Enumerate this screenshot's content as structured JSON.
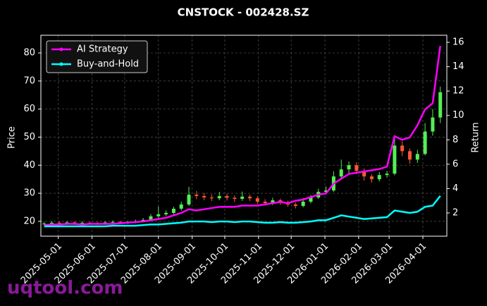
{
  "chart_data": {
    "type": "candlestick",
    "title": "CNSTOCK - 002428.SZ",
    "ylabel": "Price",
    "y2label": "Return",
    "grid": true,
    "legend": "upper left",
    "up_color": "#55ee55",
    "down_color": "#ff5533",
    "x": [
      "2025-04-18",
      "2025-04-25",
      "2025-05-02",
      "2025-05-09",
      "2025-05-16",
      "2025-05-23",
      "2025-05-30",
      "2025-06-06",
      "2025-06-13",
      "2025-06-20",
      "2025-06-27",
      "2025-07-04",
      "2025-07-11",
      "2025-07-18",
      "2025-07-25",
      "2025-08-01",
      "2025-08-08",
      "2025-08-15",
      "2025-08-22",
      "2025-08-29",
      "2025-09-05",
      "2025-09-12",
      "2025-09-19",
      "2025-09-26",
      "2025-10-03",
      "2025-10-10",
      "2025-10-17",
      "2025-10-24",
      "2025-10-31",
      "2025-11-07",
      "2025-11-14",
      "2025-11-21",
      "2025-11-28",
      "2025-12-05",
      "2025-12-12",
      "2025-12-19",
      "2025-12-26",
      "2026-01-02",
      "2026-01-09",
      "2026-01-16",
      "2026-01-23",
      "2026-01-30",
      "2026-02-06",
      "2026-02-13",
      "2026-02-20",
      "2026-02-27",
      "2026-03-06",
      "2026-03-13",
      "2026-03-20",
      "2026-03-27",
      "2026-04-03",
      "2026-04-10",
      "2026-04-17"
    ],
    "open": [
      19.0,
      19.2,
      19.5,
      19.4,
      19.6,
      19.3,
      19.5,
      19.4,
      19.2,
      19.6,
      19.8,
      19.5,
      19.7,
      20.0,
      20.5,
      21.8,
      22.5,
      23.0,
      24.5,
      26.0,
      29.5,
      29.0,
      28.5,
      28.2,
      29.0,
      28.4,
      28.0,
      28.8,
      28.2,
      27.0,
      26.5,
      27.5,
      26.8,
      26.0,
      25.5,
      27.0,
      28.5,
      30.5,
      31.0,
      36.0,
      38.5,
      40.0,
      38.0,
      36.0,
      35.0,
      36.5,
      37.0,
      47.0,
      45.0,
      42.0,
      44.0,
      52.0,
      57.0
    ],
    "high": [
      19.8,
      20.1,
      20.0,
      20.1,
      20.0,
      20.0,
      19.9,
      19.8,
      20.1,
      20.3,
      20.2,
      20.2,
      20.6,
      21.2,
      22.6,
      25.3,
      23.9,
      25.2,
      27.0,
      32.3,
      30.8,
      30.1,
      29.6,
      30.5,
      29.8,
      29.2,
      30.6,
      29.5,
      28.9,
      27.9,
      28.4,
      28.1,
      27.4,
      26.7,
      28.3,
      29.4,
      31.6,
      32.4,
      37.8,
      42.0,
      41.3,
      41.0,
      38.9,
      36.8,
      37.6,
      38.0,
      50.0,
      48.5,
      46.0,
      45.5,
      55.0,
      60.0,
      68.0
    ],
    "low": [
      18.6,
      18.8,
      18.9,
      18.9,
      18.8,
      18.8,
      18.9,
      18.7,
      18.8,
      19.1,
      19.0,
      19.1,
      19.3,
      19.6,
      20.1,
      21.2,
      21.9,
      22.4,
      23.8,
      25.5,
      27.9,
      27.6,
      27.2,
      27.5,
      27.4,
      26.9,
      27.3,
      27.2,
      26.1,
      25.6,
      25.8,
      25.9,
      25.2,
      24.6,
      25.0,
      26.4,
      28.0,
      29.6,
      30.5,
      35.2,
      37.1,
      36.8,
      34.5,
      33.8,
      34.2,
      35.6,
      36.4,
      43.2,
      40.5,
      40.8,
      43.5,
      50.5,
      55.0
    ],
    "close": [
      19.2,
      19.5,
      19.4,
      19.6,
      19.3,
      19.5,
      19.4,
      19.2,
      19.6,
      19.8,
      19.5,
      19.7,
      20.0,
      20.5,
      21.8,
      22.5,
      23.0,
      24.5,
      26.0,
      29.5,
      29.0,
      28.5,
      28.2,
      29.0,
      28.4,
      28.0,
      28.8,
      28.2,
      27.0,
      26.5,
      27.5,
      26.8,
      26.0,
      25.5,
      27.0,
      28.5,
      30.5,
      31.0,
      36.0,
      38.5,
      40.0,
      38.0,
      36.0,
      35.0,
      36.5,
      37.0,
      47.0,
      45.0,
      42.0,
      44.0,
      52.0,
      57.0,
      66.0
    ],
    "series": [
      {
        "name": "AI Strategy",
        "color": "#ff00ff",
        "axis": "y2",
        "values": [
          1.0,
          1.05,
          1.05,
          1.1,
          1.1,
          1.05,
          1.1,
          1.1,
          1.1,
          1.1,
          1.15,
          1.2,
          1.25,
          1.3,
          1.4,
          1.5,
          1.6,
          1.8,
          2.0,
          2.3,
          2.2,
          2.3,
          2.4,
          2.5,
          2.5,
          2.5,
          2.6,
          2.6,
          2.6,
          2.7,
          2.8,
          2.9,
          2.8,
          3.0,
          3.1,
          3.3,
          3.5,
          3.6,
          4.4,
          4.8,
          5.2,
          5.3,
          5.4,
          5.5,
          5.6,
          5.8,
          8.3,
          8.0,
          8.2,
          9.2,
          10.5,
          11.0,
          15.7
        ]
      },
      {
        "name": "Buy-and-Hold",
        "color": "#00ffff",
        "axis": "y2",
        "values": [
          0.9,
          0.9,
          0.9,
          0.9,
          0.9,
          0.9,
          0.9,
          0.9,
          0.9,
          0.95,
          0.95,
          0.95,
          0.95,
          1.0,
          1.05,
          1.05,
          1.1,
          1.15,
          1.2,
          1.3,
          1.3,
          1.3,
          1.25,
          1.3,
          1.3,
          1.25,
          1.3,
          1.3,
          1.25,
          1.2,
          1.2,
          1.25,
          1.2,
          1.2,
          1.25,
          1.3,
          1.4,
          1.4,
          1.6,
          1.8,
          1.7,
          1.6,
          1.5,
          1.55,
          1.6,
          1.65,
          2.2,
          2.1,
          2.0,
          2.1,
          2.5,
          2.6,
          3.4
        ]
      }
    ],
    "xlim": [
      "2025-04-15",
      "2026-04-23"
    ],
    "xticks": [
      "2025-05-01",
      "2025-06-01",
      "2025-07-01",
      "2025-08-01",
      "2025-09-01",
      "2025-10-01",
      "2025-11-01",
      "2025-12-01",
      "2026-01-01",
      "2026-02-01",
      "2026-03-01",
      "2026-04-01"
    ],
    "ylim": [
      14.7,
      86.3
    ],
    "yticks": [
      20,
      30,
      40,
      50,
      60,
      70,
      80
    ],
    "y2lim": [
      0.09,
      16.58
    ],
    "y2ticks": [
      2,
      4,
      6,
      8,
      10,
      12,
      14,
      16
    ]
  },
  "watermark": "uqtool.com"
}
